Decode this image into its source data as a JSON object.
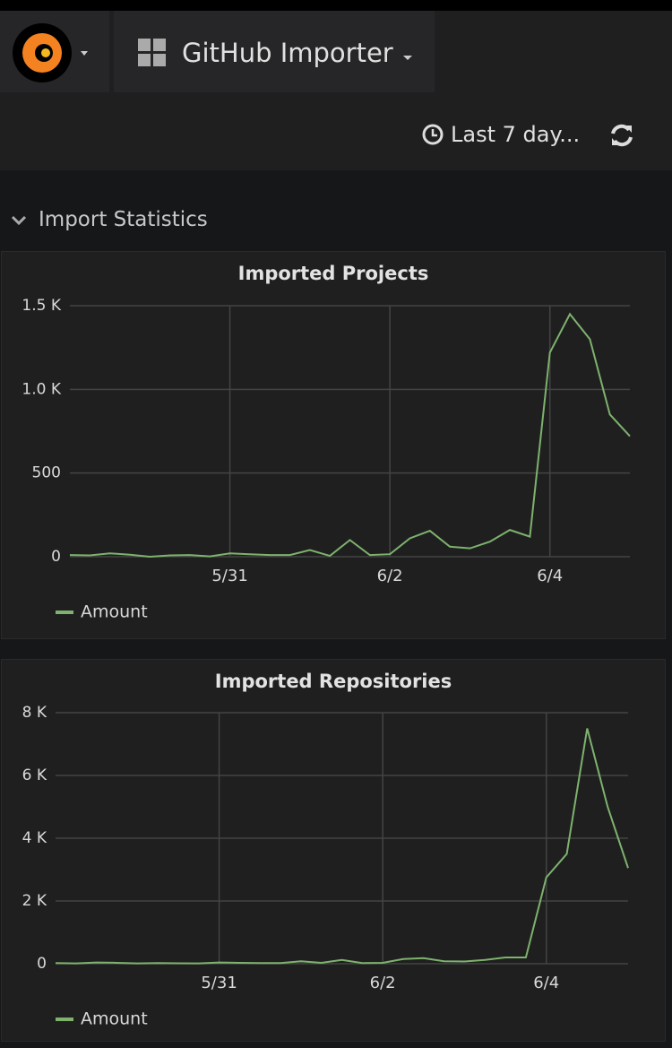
{
  "header": {
    "dashboard_title": "GitHub Importer",
    "time_range": "Last 7 day..."
  },
  "row_title": "Import Statistics",
  "chart_data": [
    {
      "type": "line",
      "title": "Imported Projects",
      "categories": [
        null,
        null,
        null,
        null,
        null,
        null,
        null,
        null,
        "5/31",
        null,
        null,
        null,
        null,
        null,
        null,
        null,
        "6/2",
        null,
        null,
        null,
        null,
        null,
        null,
        null,
        "6/4",
        null,
        null,
        null,
        null
      ],
      "series": [
        {
          "name": "Amount",
          "color": "#7eb26d",
          "values": [
            10,
            8,
            20,
            12,
            0,
            8,
            10,
            2,
            20,
            15,
            10,
            10,
            40,
            5,
            100,
            10,
            15,
            110,
            155,
            60,
            50,
            90,
            160,
            120,
            1220,
            1450,
            1300,
            850,
            720
          ]
        }
      ],
      "ylim": [
        0,
        1500
      ],
      "yticks": [
        0,
        500,
        {
          "value": 1000,
          "label": "1.0 K"
        },
        {
          "value": 1500,
          "label": "1.5 K"
        }
      ],
      "grid": true
    },
    {
      "type": "line",
      "title": "Imported Repositories",
      "categories": [
        null,
        null,
        null,
        null,
        null,
        null,
        null,
        null,
        "5/31",
        null,
        null,
        null,
        null,
        null,
        null,
        null,
        "6/2",
        null,
        null,
        null,
        null,
        null,
        null,
        null,
        "6/4",
        null,
        null,
        null,
        null
      ],
      "series": [
        {
          "name": "Amount",
          "color": "#7eb26d",
          "values": [
            20,
            10,
            40,
            30,
            10,
            20,
            15,
            10,
            40,
            30,
            20,
            20,
            80,
            30,
            120,
            20,
            30,
            150,
            180,
            80,
            70,
            120,
            200,
            200,
            2750,
            3500,
            7500,
            5000,
            3050
          ]
        }
      ],
      "ylim": [
        0,
        8000
      ],
      "yticks": [
        0,
        {
          "value": 2000,
          "label": "2 K"
        },
        {
          "value": 4000,
          "label": "4 K"
        },
        {
          "value": 6000,
          "label": "6 K"
        },
        {
          "value": 8000,
          "label": "8 K"
        }
      ],
      "grid": true
    }
  ]
}
